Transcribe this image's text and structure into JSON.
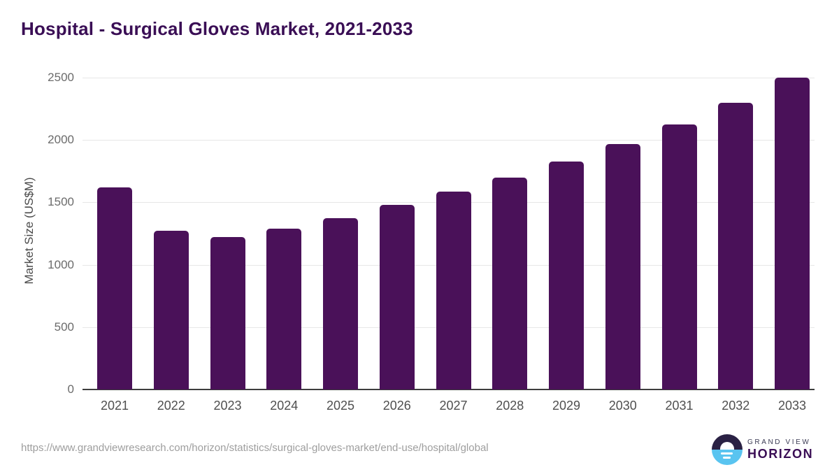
{
  "title": "Hospital - Surgical Gloves Market, 2021-2033",
  "footer": {
    "source_url": "https://www.grandviewresearch.com/horizon/statistics/surgical-gloves-market/end-use/hospital/global",
    "logo_line1": "GRAND VIEW",
    "logo_line2": "HORIZON"
  },
  "colors": {
    "bar": "#4A1159",
    "title": "#3A0E55",
    "axis_line": "#3d3d3d",
    "gridline": "#e7e7e7",
    "y_tick_label": "#6b6b6b",
    "x_tick_label": "#4f4f4f",
    "url_text": "#9e9e9e",
    "logo_dark_half": "#2A2144",
    "logo_blue_half": "#59C4F0"
  },
  "chart_data": {
    "type": "bar",
    "title": "Hospital - Surgical Gloves Market, 2021-2033",
    "categories": [
      "2021",
      "2022",
      "2023",
      "2024",
      "2025",
      "2026",
      "2027",
      "2028",
      "2029",
      "2030",
      "2031",
      "2032",
      "2033"
    ],
    "values": [
      1620,
      1270,
      1220,
      1290,
      1375,
      1480,
      1585,
      1700,
      1830,
      1970,
      2125,
      2300,
      2500
    ],
    "xlabel": "",
    "ylabel": "Market Size (US$M)",
    "ylim": [
      0,
      2500
    ],
    "yticks": [
      0,
      500,
      1000,
      1500,
      2000,
      2500
    ],
    "grid": true,
    "legend": false,
    "bar_color": "#4A1159"
  }
}
